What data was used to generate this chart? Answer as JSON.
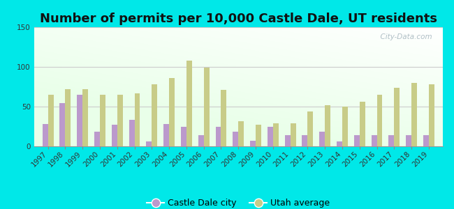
{
  "title": "Number of permits per 10,000 Castle Dale, UT residents",
  "years": [
    1997,
    1998,
    1999,
    2000,
    2001,
    2002,
    2003,
    2004,
    2005,
    2006,
    2007,
    2008,
    2009,
    2010,
    2011,
    2012,
    2013,
    2014,
    2015,
    2016,
    2017,
    2018,
    2019
  ],
  "castle_dale": [
    28,
    54,
    65,
    18,
    27,
    33,
    6,
    28,
    25,
    14,
    25,
    18,
    7,
    25,
    14,
    14,
    18,
    6,
    14,
    14,
    14,
    14,
    14
  ],
  "utah_avg": [
    65,
    72,
    72,
    65,
    65,
    67,
    78,
    86,
    108,
    99,
    71,
    32,
    27,
    29,
    29,
    44,
    52,
    50,
    56,
    65,
    74,
    80,
    78
  ],
  "castle_dale_color": "#bb99cc",
  "utah_avg_color": "#c8cc88",
  "bg_outer": "#00e8e8",
  "grid_color": "#cccccc",
  "ylim": [
    0,
    150
  ],
  "yticks": [
    0,
    50,
    100,
    150
  ],
  "bar_width": 0.32,
  "title_fontsize": 13,
  "tick_fontsize": 7.5,
  "legend_fontsize": 9,
  "watermark": "  City-Data.com"
}
